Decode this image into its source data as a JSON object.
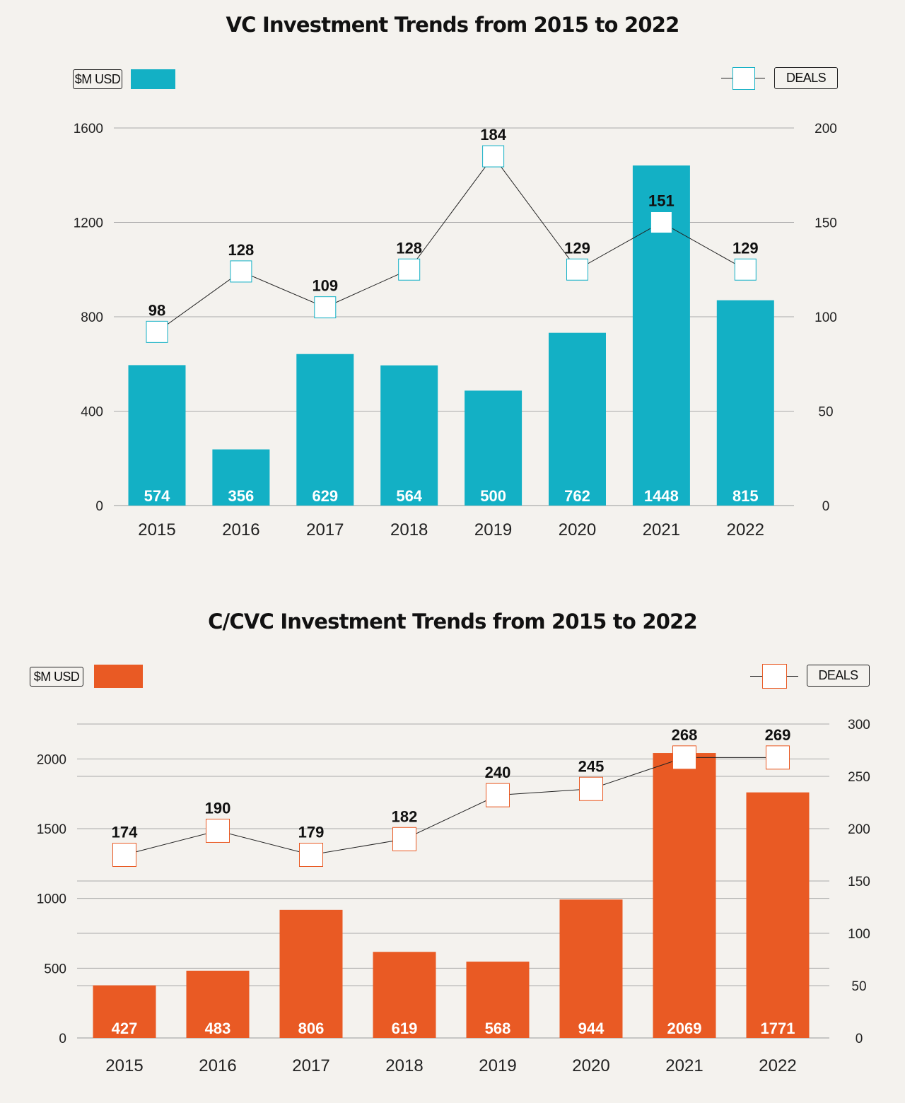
{
  "chart_data": [
    {
      "type": "bar",
      "title": "VC Investment Trends from 2015 to 2022",
      "categories": [
        "2015",
        "2016",
        "2017",
        "2018",
        "2019",
        "2020",
        "2021",
        "2022"
      ],
      "series": [
        {
          "name": "$M USD",
          "type": "bar",
          "axis": "left",
          "color": "#13b0c5",
          "values": [
            574,
            356,
            629,
            564,
            500,
            762,
            1448,
            815
          ],
          "rendered_values": [
            595,
            238,
            642,
            594,
            487,
            732,
            1441,
            870
          ]
        },
        {
          "name": "DEALS",
          "type": "line",
          "axis": "right",
          "color": "#13b0c5",
          "values": [
            98,
            128,
            109,
            128,
            184,
            129,
            151,
            129
          ],
          "rendered_values": [
            92,
            124,
            105,
            125,
            185,
            125,
            150,
            125
          ]
        }
      ],
      "y_left": {
        "ylim": [
          0,
          1600
        ],
        "ticks": [
          0,
          400,
          800,
          1200,
          1600
        ]
      },
      "y_right": {
        "ylim": [
          0,
          200
        ],
        "ticks": [
          0,
          50,
          100,
          150,
          200
        ]
      },
      "legend": {
        "bar_label": "$M USD",
        "line_label": "DEALS",
        "placement": "top"
      },
      "grid": true
    },
    {
      "type": "bar",
      "title": "C/CVC Investment Trends from 2015 to 2022",
      "categories": [
        "2015",
        "2016",
        "2017",
        "2018",
        "2019",
        "2020",
        "2021",
        "2022"
      ],
      "series": [
        {
          "name": "$M USD",
          "type": "bar",
          "axis": "left",
          "color": "#e95a24",
          "values": [
            427,
            483,
            806,
            619,
            568,
            944,
            2069,
            1771
          ],
          "rendered_values": [
            377,
            482,
            918,
            617,
            547,
            992,
            2042,
            1760
          ]
        },
        {
          "name": "DEALS",
          "type": "line",
          "axis": "right",
          "color": "#e95a24",
          "values": [
            174,
            190,
            179,
            182,
            240,
            245,
            268,
            269
          ],
          "rendered_values": [
            175,
            198,
            175,
            190,
            232,
            238,
            268,
            268
          ]
        }
      ],
      "y_left": {
        "ylim": [
          0,
          2250
        ],
        "ticks": [
          0,
          500,
          1000,
          1500,
          2000
        ]
      },
      "y_right": {
        "ylim": [
          0,
          300
        ],
        "ticks": [
          0,
          50,
          100,
          150,
          200,
          250,
          300
        ]
      },
      "legend": {
        "bar_label": "$M USD",
        "line_label": "DEALS",
        "placement": "top"
      },
      "grid": true
    }
  ]
}
